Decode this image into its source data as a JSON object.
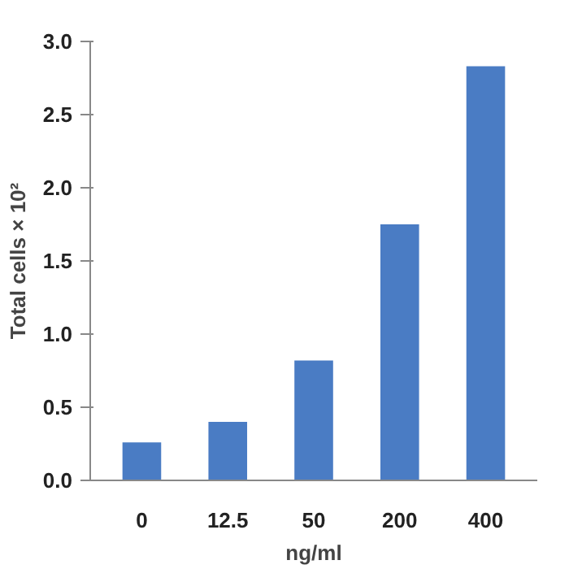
{
  "chart_data": {
    "type": "bar",
    "xlabel": "ng/ml",
    "ylabel": "Total cells × 10²",
    "categories": [
      "0",
      "12.5",
      "50",
      "200",
      "400"
    ],
    "values": [
      0.26,
      0.4,
      0.82,
      1.75,
      2.83
    ],
    "color": "#4a7cc4",
    "ylim": [
      0,
      3.0
    ],
    "yticks": [
      {
        "value": 0,
        "label": "0.0"
      },
      {
        "value": 0.5,
        "label": "0.5"
      },
      {
        "value": 1,
        "label": "1.0"
      },
      {
        "value": 1.5,
        "label": "1.5"
      },
      {
        "value": 2,
        "label": "2.0"
      },
      {
        "value": 2.5,
        "label": "2.5"
      },
      {
        "value": 3,
        "label": "3.0"
      }
    ],
    "grid": false
  }
}
